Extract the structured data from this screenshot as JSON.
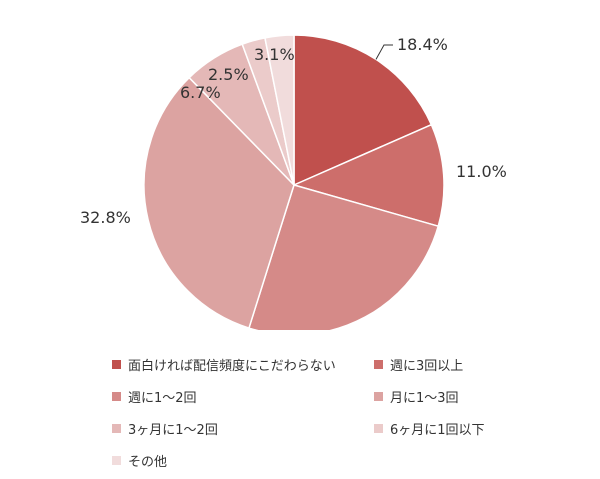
{
  "chart_data": {
    "type": "pie",
    "title": "",
    "categories": [
      "面白ければ配信頻度にこだわらない",
      "週に3回以上",
      "週に1～2回",
      "月に1～3回",
      "3ヶ月に1～2回",
      "6ヶ月に1回以下",
      "その他"
    ],
    "values": [
      18.4,
      11.0,
      25.4,
      32.8,
      6.7,
      2.5,
      3.1
    ],
    "value_labels": [
      "18.4%",
      "11.0%",
      "25.4%",
      "32.8%",
      "6.7%",
      "2.5%",
      "3.1%"
    ],
    "colors": [
      "#c0504d",
      "#cd6e6b",
      "#d58a88",
      "#dca3a1",
      "#e4b8b7",
      "#ebcbca",
      "#f1dcdc"
    ],
    "start_angle": "12 o'clock",
    "direction": "clockwise",
    "legend_position": "bottom",
    "legend_columns": 2
  }
}
